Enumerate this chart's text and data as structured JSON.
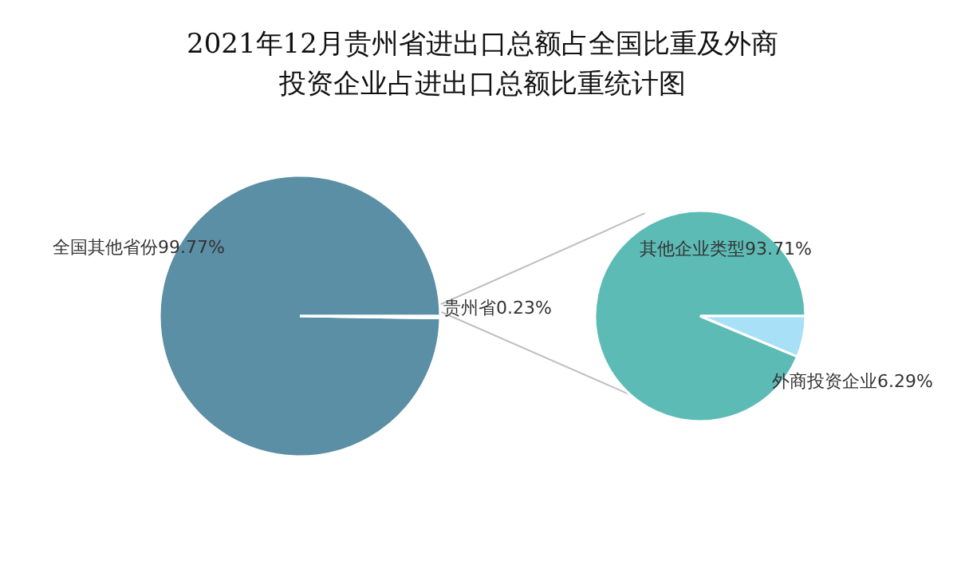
{
  "chart_data": [
    {
      "type": "pie",
      "title": "2021年12月贵州省进出口总额占全国比重及外商投资企业占进出口总额比重统计图",
      "categories": [
        "全国其他省份",
        "贵州省"
      ],
      "values": [
        99.77,
        0.23
      ],
      "value_labels": [
        "99.77%",
        "0.23%"
      ],
      "colors": [
        "#5b8fa5",
        "#f4fafc"
      ]
    },
    {
      "type": "pie",
      "categories": [
        "其他企业类型",
        "外商投资企业"
      ],
      "values": [
        93.71,
        6.29
      ],
      "value_labels": [
        "93.71%",
        "6.29%"
      ],
      "colors": [
        "#5dbbb6",
        "#a8e0f8"
      ]
    }
  ]
}
